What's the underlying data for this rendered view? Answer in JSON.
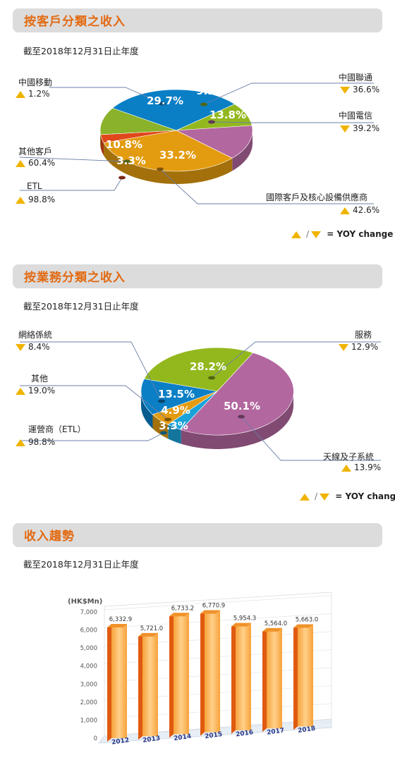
{
  "colors": {
    "title": "#e26a12",
    "up": "#f0b400",
    "down": "#f0b400",
    "bar": "#f5a122"
  },
  "section1": {
    "title": "按客戶分類之收入",
    "subtitle": "截至2018年12月31日止年度",
    "yoy_legend": "/ ▼ = YOY change",
    "yoy_text": "= YOY change",
    "slash": "/"
  },
  "section2": {
    "title": "按業務分類之收入",
    "subtitle": "截至2018年12月31日止年度",
    "yoy_text": "= YOY change",
    "slash": "/"
  },
  "section3": {
    "title": "收入趨勢",
    "subtitle": "截至2018年12月31日止年度"
  },
  "chart_data": [
    {
      "type": "pie",
      "slices": [
        {
          "label": "中國移動",
          "value": 29.7,
          "display": "29.7%",
          "yoy": "1.2%",
          "yoy_dir": "up",
          "color": "#0a7fc6"
        },
        {
          "label": "中國聯通",
          "value": 9.2,
          "display": "9.2%",
          "yoy": "36.6%",
          "yoy_dir": "down",
          "color": "#93b81e"
        },
        {
          "label": "中國電信",
          "value": 13.8,
          "display": "13.8%",
          "yoy": "39.2%",
          "yoy_dir": "down",
          "color": "#b2679f"
        },
        {
          "label": "國際客戶及核心設備供應商",
          "value": 33.2,
          "display": "33.2%",
          "yoy": "42.6%",
          "yoy_dir": "up",
          "color": "#e39b0f"
        },
        {
          "label": "ETL",
          "value": 3.3,
          "display": "3.3%",
          "yoy": "98.8%",
          "yoy_dir": "up",
          "color": "#e0481b"
        },
        {
          "label": "其他客戶",
          "value": 10.8,
          "display": "10.8%",
          "yoy": "60.4%",
          "yoy_dir": "up",
          "color": "#8ab22a"
        }
      ]
    },
    {
      "type": "pie",
      "slices": [
        {
          "label": "天線及子系統",
          "value": 50.1,
          "display": "50.1%",
          "yoy": "13.9%",
          "yoy_dir": "up",
          "color": "#b2679f"
        },
        {
          "label": "運營商（ETL）",
          "value": 3.3,
          "display": "3.3%",
          "yoy": "98.8%",
          "yoy_dir": "up",
          "color": "#1aa3d8"
        },
        {
          "label": "其他",
          "value": 4.9,
          "display": "4.9%",
          "yoy": "19.0%",
          "yoy_dir": "up",
          "color": "#e39b0f"
        },
        {
          "label": "網絡係統",
          "value": 13.5,
          "display": "13.5%",
          "yoy": "8.4%",
          "yoy_dir": "down",
          "color": "#0a7fc6"
        },
        {
          "label": "服務",
          "value": 28.2,
          "display": "28.2%",
          "yoy": "12.9%",
          "yoy_dir": "down",
          "color": "#93b81e"
        }
      ]
    },
    {
      "type": "bar",
      "ylabel": "(HK$Mn)",
      "categories": [
        "2012",
        "2013",
        "2014",
        "2015",
        "2016",
        "2017",
        "2018"
      ],
      "values": [
        6332.9,
        5721.0,
        6733.2,
        6770.9,
        5954.3,
        5564.0,
        5663.0
      ],
      "value_labels": [
        "6,332.9",
        "5,721.0",
        "6,733.2",
        "6,770.9",
        "5,954.3",
        "5,564.0",
        "5,663.0"
      ],
      "yticks": [
        "0",
        "1,000",
        "2,000",
        "3,000",
        "4,000",
        "5,000",
        "6,000",
        "7,000"
      ],
      "ylim": [
        0,
        7000
      ]
    }
  ]
}
